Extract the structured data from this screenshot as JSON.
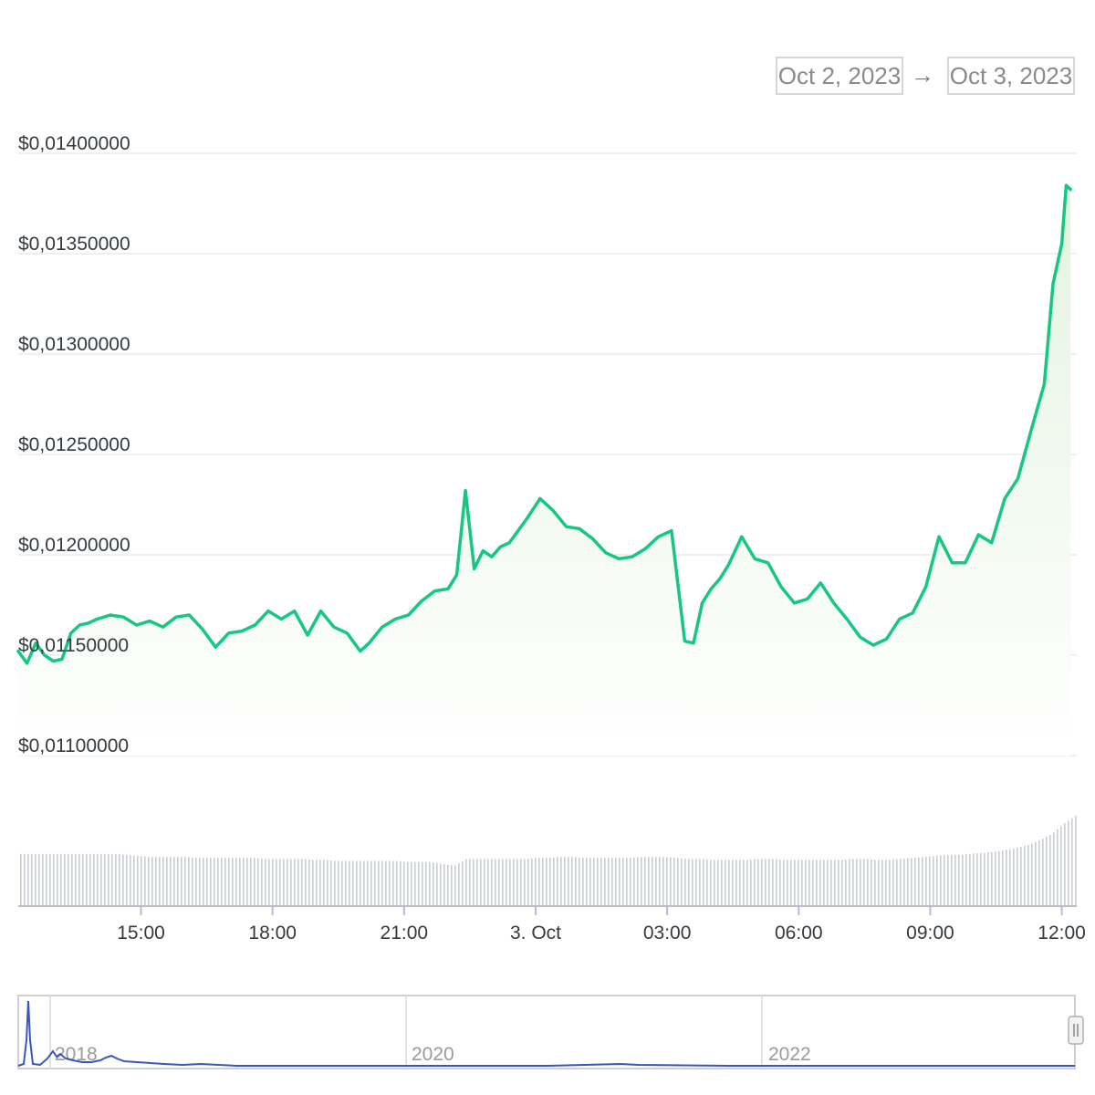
{
  "range_selector": {
    "from": "Oct 2, 2023",
    "arrow": "→",
    "to": "Oct 3, 2023"
  },
  "colors": {
    "price_line": "#16c784",
    "area_top": "#e6f5e3",
    "volume_bar": "#c8ccd2",
    "navigator_line": "#3a57b5",
    "grid": "#ececec"
  },
  "chart_data": {
    "type": "line",
    "ylim": [
      0.011,
      0.014
    ],
    "y_ticks": [
      {
        "value": 0.014,
        "label": "$0,01400000"
      },
      {
        "value": 0.0135,
        "label": "$0,01350000"
      },
      {
        "value": 0.013,
        "label": "$0,01300000"
      },
      {
        "value": 0.0125,
        "label": "$0,01250000"
      },
      {
        "value": 0.012,
        "label": "$0,01200000"
      },
      {
        "value": 0.0115,
        "label": "$0,01150000"
      },
      {
        "value": 0.011,
        "label": "$0,01100000"
      }
    ],
    "x_range_hours": [
      12.2,
      36.3
    ],
    "x_ticks": [
      {
        "hour": 15,
        "label": "15:00"
      },
      {
        "hour": 18,
        "label": "18:00"
      },
      {
        "hour": 21,
        "label": "21:00"
      },
      {
        "hour": 24,
        "label": "3. Oct"
      },
      {
        "hour": 27,
        "label": "03:00"
      },
      {
        "hour": 30,
        "label": "06:00"
      },
      {
        "hour": 33,
        "label": "09:00"
      },
      {
        "hour": 36,
        "label": "12:00"
      }
    ],
    "x_hours": [
      12.2,
      12.4,
      12.6,
      12.8,
      13.0,
      13.2,
      13.4,
      13.6,
      13.8,
      14.0,
      14.3,
      14.6,
      14.9,
      15.2,
      15.5,
      15.8,
      16.1,
      16.4,
      16.7,
      17.0,
      17.3,
      17.6,
      17.9,
      18.2,
      18.5,
      18.8,
      19.1,
      19.4,
      19.7,
      20.0,
      20.2,
      20.5,
      20.8,
      21.1,
      21.4,
      21.7,
      22.0,
      22.2,
      22.4,
      22.6,
      22.8,
      23.0,
      23.2,
      23.4,
      23.6,
      23.8,
      24.1,
      24.4,
      24.7,
      25.0,
      25.3,
      25.6,
      25.9,
      26.2,
      26.5,
      26.8,
      27.1,
      27.4,
      27.6,
      27.8,
      28.0,
      28.2,
      28.4,
      28.7,
      29.0,
      29.3,
      29.6,
      29.9,
      30.2,
      30.5,
      30.8,
      31.1,
      31.4,
      31.7,
      32.0,
      32.3,
      32.6,
      32.9,
      33.2,
      33.5,
      33.8,
      34.1,
      34.4,
      34.7,
      35.0,
      35.3,
      35.6,
      35.8,
      36.0,
      36.1,
      36.2
    ],
    "y_values": [
      0.01152,
      0.01146,
      0.01156,
      0.0115,
      0.01147,
      0.01148,
      0.01161,
      0.01165,
      0.01166,
      0.01168,
      0.0117,
      0.01169,
      0.01165,
      0.01167,
      0.01164,
      0.01169,
      0.0117,
      0.01163,
      0.01154,
      0.01161,
      0.01162,
      0.01165,
      0.01172,
      0.01168,
      0.01172,
      0.0116,
      0.01172,
      0.01164,
      0.01161,
      0.01152,
      0.01156,
      0.01164,
      0.01168,
      0.0117,
      0.01177,
      0.01182,
      0.01183,
      0.0119,
      0.01232,
      0.01193,
      0.01202,
      0.01199,
      0.01204,
      0.01206,
      0.01212,
      0.01218,
      0.01228,
      0.01222,
      0.01214,
      0.01213,
      0.01208,
      0.01201,
      0.01198,
      0.01199,
      0.01203,
      0.01209,
      0.01212,
      0.01157,
      0.01156,
      0.01176,
      0.01183,
      0.01188,
      0.01195,
      0.01209,
      0.01198,
      0.01196,
      0.01184,
      0.01176,
      0.01178,
      0.01186,
      0.01176,
      0.01168,
      0.01159,
      0.01155,
      0.01158,
      0.01168,
      0.01171,
      0.01184,
      0.01209,
      0.01196,
      0.01196,
      0.0121,
      0.01206,
      0.01228,
      0.01238,
      0.01262,
      0.01285,
      0.01335,
      0.01355,
      0.01384,
      0.01382
    ],
    "volume_relative": [
      0.52,
      0.52,
      0.52,
      0.52,
      0.52,
      0.52,
      0.52,
      0.52,
      0.52,
      0.51,
      0.5,
      0.49,
      0.49,
      0.49,
      0.49,
      0.48,
      0.48,
      0.48,
      0.48,
      0.48,
      0.48,
      0.47,
      0.47,
      0.47,
      0.47,
      0.46,
      0.46,
      0.45,
      0.45,
      0.45,
      0.45,
      0.45,
      0.45,
      0.44,
      0.44,
      0.44,
      0.42,
      0.4,
      0.47,
      0.47,
      0.47,
      0.47,
      0.47,
      0.47,
      0.48,
      0.48,
      0.49,
      0.49,
      0.48,
      0.48,
      0.48,
      0.48,
      0.48,
      0.49,
      0.49,
      0.49,
      0.48,
      0.47,
      0.47,
      0.46,
      0.46,
      0.46,
      0.46,
      0.47,
      0.47,
      0.46,
      0.46,
      0.46,
      0.46,
      0.46,
      0.46,
      0.47,
      0.47,
      0.46,
      0.46,
      0.47,
      0.48,
      0.49,
      0.5,
      0.51,
      0.51,
      0.52,
      0.53,
      0.54,
      0.56,
      0.58,
      0.61,
      0.66,
      0.72,
      0.82,
      0.9
    ]
  },
  "navigator": {
    "year_labels": [
      "2018",
      "2020",
      "2022"
    ]
  }
}
